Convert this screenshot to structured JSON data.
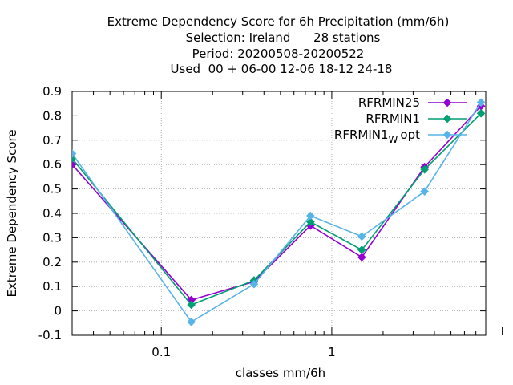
{
  "title_lines": [
    "Extreme Dependency Score  for 6h Precipitation (mm/6h)",
    "Selection: Ireland      28 stations",
    "Period: 20200508-20200522",
    "Used  00 + 06-00 12-06 18-12 24-18"
  ],
  "chart_data": {
    "type": "line",
    "xlabel": "classes mm/6h",
    "ylabel": "Extreme Dependency Score",
    "x_scale": "log",
    "xlim": [
      0.03,
      8.0
    ],
    "ylim": [
      -0.1,
      0.9
    ],
    "y_ticks": [
      "-0.1",
      "0",
      "0.1",
      "0.2",
      "0.3",
      "0.4",
      "0.5",
      "0.6",
      "0.7",
      "0.8",
      "0.9"
    ],
    "x_tick_labels": [
      {
        "value": 0.1,
        "label": "0.1"
      },
      {
        "value": 1,
        "label": "1"
      }
    ],
    "grid": true,
    "legend_position": "top-right",
    "series": [
      {
        "name": "RFRMIN25",
        "color": "#9400d3",
        "x": [
          0.03,
          0.15,
          0.35,
          0.75,
          1.5,
          3.5,
          7.5
        ],
        "y": [
          0.6,
          0.045,
          0.12,
          0.35,
          0.22,
          0.59,
          0.84
        ]
      },
      {
        "name": "RFRMIN1",
        "color": "#009e73",
        "x": [
          0.03,
          0.15,
          0.35,
          0.75,
          1.5,
          3.5,
          7.5
        ],
        "y": [
          0.625,
          0.025,
          0.125,
          0.365,
          0.25,
          0.58,
          0.81
        ]
      },
      {
        "name": "RFRMIN1",
        "name_subscript": "W",
        "name_suffix": "opt",
        "color": "#56b4e9",
        "x": [
          0.03,
          0.15,
          0.35,
          0.75,
          1.5,
          3.5,
          7.5
        ],
        "y": [
          0.645,
          -0.045,
          0.11,
          0.39,
          0.305,
          0.49,
          0.855
        ]
      }
    ]
  }
}
